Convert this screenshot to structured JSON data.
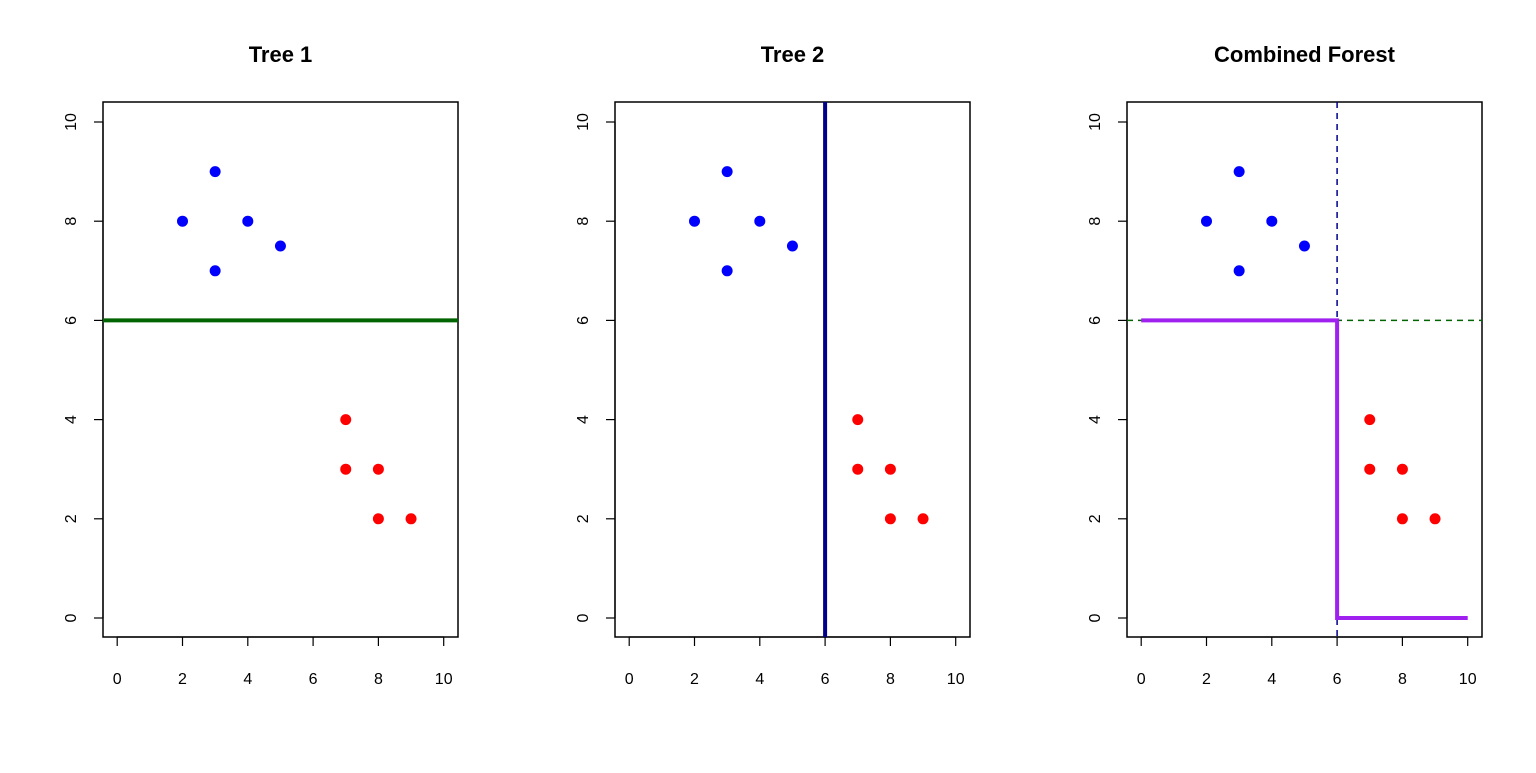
{
  "chart_data": [
    {
      "type": "scatter",
      "title": "Tree 1",
      "xlabel": "",
      "ylabel": "",
      "xlim": [
        0,
        10
      ],
      "ylim": [
        0,
        10
      ],
      "xticks": [
        0,
        2,
        4,
        6,
        8,
        10
      ],
      "yticks": [
        0,
        2,
        4,
        6,
        8,
        10
      ],
      "grid": false,
      "points": [
        {
          "x": 2,
          "y": 8,
          "class": "blue"
        },
        {
          "x": 3,
          "y": 9,
          "class": "blue"
        },
        {
          "x": 3,
          "y": 7,
          "class": "blue"
        },
        {
          "x": 4,
          "y": 8,
          "class": "blue"
        },
        {
          "x": 5,
          "y": 7.5,
          "class": "blue"
        },
        {
          "x": 7,
          "y": 4,
          "class": "red"
        },
        {
          "x": 7,
          "y": 3,
          "class": "red"
        },
        {
          "x": 8,
          "y": 3,
          "class": "red"
        },
        {
          "x": 8,
          "y": 2,
          "class": "red"
        },
        {
          "x": 9,
          "y": 2,
          "class": "red"
        }
      ],
      "lines": [
        {
          "orientation": "h",
          "value": 6,
          "color": "#006400",
          "style": "solid",
          "weight": "thick"
        }
      ],
      "paths": []
    },
    {
      "type": "scatter",
      "title": "Tree 2",
      "xlabel": "",
      "ylabel": "",
      "xlim": [
        0,
        10
      ],
      "ylim": [
        0,
        10
      ],
      "xticks": [
        0,
        2,
        4,
        6,
        8,
        10
      ],
      "yticks": [
        0,
        2,
        4,
        6,
        8,
        10
      ],
      "grid": false,
      "points": [
        {
          "x": 2,
          "y": 8,
          "class": "blue"
        },
        {
          "x": 3,
          "y": 9,
          "class": "blue"
        },
        {
          "x": 3,
          "y": 7,
          "class": "blue"
        },
        {
          "x": 4,
          "y": 8,
          "class": "blue"
        },
        {
          "x": 5,
          "y": 7.5,
          "class": "blue"
        },
        {
          "x": 7,
          "y": 4,
          "class": "red"
        },
        {
          "x": 7,
          "y": 3,
          "class": "red"
        },
        {
          "x": 8,
          "y": 3,
          "class": "red"
        },
        {
          "x": 8,
          "y": 2,
          "class": "red"
        },
        {
          "x": 9,
          "y": 2,
          "class": "red"
        }
      ],
      "lines": [
        {
          "orientation": "v",
          "value": 6,
          "color": "#00008B",
          "style": "solid",
          "weight": "thick"
        }
      ],
      "paths": []
    },
    {
      "type": "scatter",
      "title": "Combined Forest",
      "xlabel": "",
      "ylabel": "",
      "xlim": [
        0,
        10
      ],
      "ylim": [
        0,
        10
      ],
      "xticks": [
        0,
        2,
        4,
        6,
        8,
        10
      ],
      "yticks": [
        0,
        2,
        4,
        6,
        8,
        10
      ],
      "grid": false,
      "points": [
        {
          "x": 2,
          "y": 8,
          "class": "blue"
        },
        {
          "x": 3,
          "y": 9,
          "class": "blue"
        },
        {
          "x": 3,
          "y": 7,
          "class": "blue"
        },
        {
          "x": 4,
          "y": 8,
          "class": "blue"
        },
        {
          "x": 5,
          "y": 7.5,
          "class": "blue"
        },
        {
          "x": 7,
          "y": 4,
          "class": "red"
        },
        {
          "x": 7,
          "y": 3,
          "class": "red"
        },
        {
          "x": 8,
          "y": 3,
          "class": "red"
        },
        {
          "x": 8,
          "y": 2,
          "class": "red"
        },
        {
          "x": 9,
          "y": 2,
          "class": "red"
        }
      ],
      "lines": [
        {
          "orientation": "h",
          "value": 6,
          "color": "#006400",
          "style": "dashed",
          "weight": "thin"
        },
        {
          "orientation": "v",
          "value": 6,
          "color": "#00008B",
          "style": "dashed",
          "weight": "thin"
        }
      ],
      "paths": [
        {
          "color": "#A020F0",
          "points": [
            [
              0,
              6
            ],
            [
              6,
              6
            ],
            [
              6,
              0
            ],
            [
              10,
              0
            ]
          ]
        }
      ]
    }
  ],
  "colors": {
    "blue": "#0000FF",
    "red": "#FF0000"
  }
}
